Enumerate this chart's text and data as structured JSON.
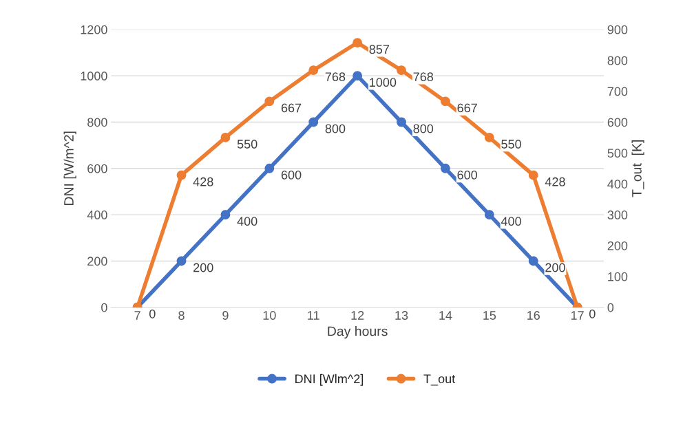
{
  "chart_data": {
    "type": "line",
    "xlabel": "Day hours",
    "ylabel": "DNI [W/m^2]",
    "y2label": "T_out  [K]",
    "categories": [
      "7",
      "8",
      "9",
      "10",
      "11",
      "12",
      "13",
      "14",
      "15",
      "16",
      "17"
    ],
    "series": [
      {
        "name": "DNI [Wlm^2]",
        "color": "#4472c4",
        "values": [
          0,
          200,
          400,
          600,
          800,
          1000,
          800,
          600,
          400,
          200,
          0
        ],
        "value_labels": [
          "0",
          "200",
          "400",
          "600",
          "800",
          "1000",
          "800",
          "600",
          "400",
          "200",
          "0"
        ]
      },
      {
        "name": "T_out",
        "color": "#ed7d31",
        "axis": "y2",
        "values": [
          0,
          428,
          550,
          667,
          768,
          857,
          768,
          667,
          550,
          428,
          0
        ],
        "value_labels": [
          null,
          "428",
          "550",
          "667",
          "768",
          "857",
          "768",
          "667",
          "550",
          "428",
          null
        ]
      }
    ],
    "ylim": [
      0,
      1200
    ],
    "yticks": [
      0,
      200,
      400,
      600,
      800,
      1000,
      1200
    ],
    "y2lim": [
      0,
      900
    ],
    "y2ticks": [
      0,
      100,
      200,
      300,
      400,
      500,
      600,
      700,
      800,
      900
    ],
    "grid": "y",
    "legend": "bottom",
    "marker": "circle",
    "line_style": "solid"
  }
}
